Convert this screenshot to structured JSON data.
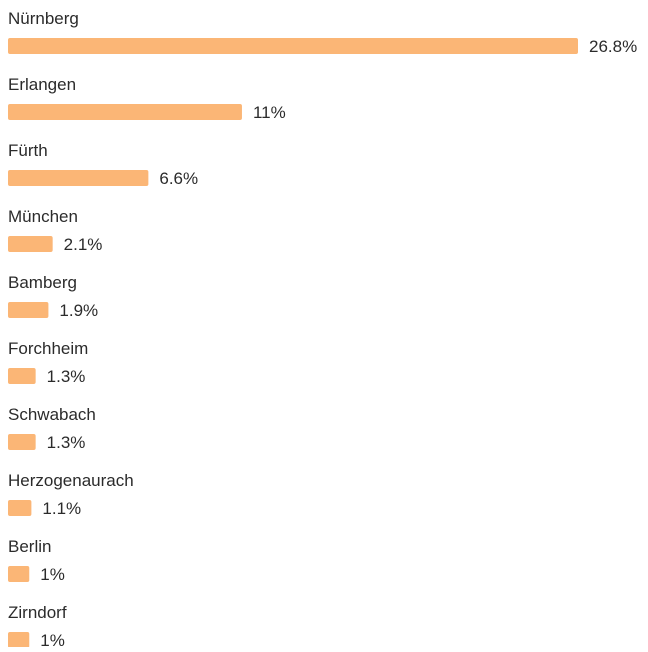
{
  "chart_data": {
    "type": "bar",
    "orientation": "horizontal",
    "categories": [
      "Nürnberg",
      "Erlangen",
      "Fürth",
      "München",
      "Bamberg",
      "Forchheim",
      "Schwabach",
      "Herzogenaurach",
      "Berlin",
      "Zirndorf"
    ],
    "values": [
      26.8,
      11,
      6.6,
      2.1,
      1.9,
      1.3,
      1.3,
      1.1,
      1,
      1
    ],
    "value_labels": [
      "26.8%",
      "11%",
      "6.6%",
      "2.1%",
      "1.9%",
      "1.3%",
      "1.3%",
      "1.1%",
      "1%",
      "1%"
    ],
    "color": "#fbb676"
  }
}
